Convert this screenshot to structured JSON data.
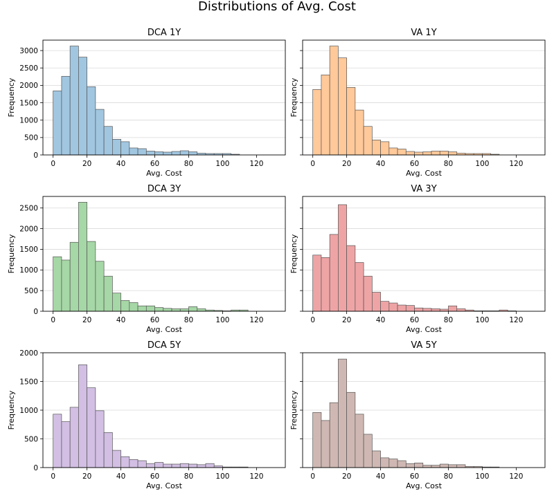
{
  "suptitle": "Distributions of Avg. Cost",
  "chart_data": [
    {
      "type": "bar",
      "title": "DCA 1Y",
      "xlabel": "Avg. Cost",
      "ylabel": "Frequency",
      "color": "#1f77b4",
      "xlim": [
        -6,
        137
      ],
      "ylim": [
        0,
        3300
      ],
      "xticks": [
        0,
        20,
        40,
        60,
        80,
        100,
        120
      ],
      "yticks": [
        0,
        500,
        1000,
        1500,
        2000,
        2500,
        3000
      ],
      "grid": "y",
      "bin_width": 5,
      "bin_start": 0,
      "values": [
        1840,
        2260,
        3130,
        2810,
        1960,
        1310,
        820,
        450,
        380,
        200,
        180,
        110,
        90,
        80,
        100,
        120,
        90,
        50,
        40,
        40,
        40,
        20,
        0,
        0,
        0,
        0
      ]
    },
    {
      "type": "bar",
      "title": "VA 1Y",
      "xlabel": "Avg. Cost",
      "ylabel": "Frequency",
      "color": "#ff7f0e",
      "xlim": [
        -6,
        137
      ],
      "ylim": [
        0,
        3300
      ],
      "xticks": [
        0,
        20,
        40,
        60,
        80,
        100,
        120
      ],
      "yticks": [
        0,
        500,
        1000,
        1500,
        2000,
        2500,
        3000
      ],
      "grid": "y",
      "bin_width": 5,
      "bin_start": 0,
      "values": [
        1880,
        2300,
        3130,
        2790,
        1940,
        1290,
        820,
        430,
        380,
        200,
        170,
        100,
        80,
        90,
        110,
        110,
        90,
        50,
        40,
        40,
        40,
        20,
        0,
        0,
        0,
        0
      ]
    },
    {
      "type": "bar",
      "title": "DCA 3Y",
      "xlabel": "Avg. Cost",
      "ylabel": "Frequency",
      "color": "#2ca02c",
      "xlim": [
        -6,
        137
      ],
      "ylim": [
        0,
        2780
      ],
      "xticks": [
        0,
        20,
        40,
        60,
        80,
        100,
        120
      ],
      "yticks": [
        0,
        500,
        1000,
        1500,
        2000,
        2500
      ],
      "grid": "y",
      "bin_width": 5,
      "bin_start": 0,
      "values": [
        1320,
        1240,
        1670,
        2640,
        1690,
        1210,
        850,
        440,
        260,
        210,
        130,
        130,
        90,
        70,
        60,
        60,
        110,
        60,
        30,
        20,
        10,
        30,
        30,
        0,
        0,
        0
      ]
    },
    {
      "type": "bar",
      "title": "VA 3Y",
      "xlabel": "Avg. Cost",
      "ylabel": "Frequency",
      "color": "#d62728",
      "xlim": [
        -6,
        137
      ],
      "ylim": [
        0,
        2780
      ],
      "xticks": [
        0,
        20,
        40,
        60,
        80,
        100,
        120
      ],
      "yticks": [
        0,
        500,
        1000,
        1500,
        2000,
        2500
      ],
      "grid": "y",
      "bin_width": 5,
      "bin_start": 0,
      "values": [
        1360,
        1300,
        1860,
        2580,
        1590,
        1180,
        850,
        460,
        240,
        200,
        150,
        140,
        80,
        70,
        60,
        50,
        130,
        60,
        30,
        10,
        10,
        10,
        30,
        10,
        0,
        0
      ]
    },
    {
      "type": "bar",
      "title": "DCA 5Y",
      "xlabel": "Avg. Cost",
      "ylabel": "Frequency",
      "color": "#9467bd",
      "xlim": [
        -6,
        137
      ],
      "ylim": [
        0,
        2000
      ],
      "xticks": [
        0,
        20,
        40,
        60,
        80,
        100,
        120
      ],
      "yticks": [
        0,
        500,
        1000,
        1500,
        2000
      ],
      "grid": "y",
      "bin_width": 5,
      "bin_start": 0,
      "values": [
        930,
        800,
        1050,
        1790,
        1390,
        990,
        610,
        300,
        190,
        140,
        120,
        70,
        90,
        60,
        60,
        70,
        60,
        50,
        70,
        30,
        10,
        10,
        10,
        0,
        0,
        0
      ]
    },
    {
      "type": "bar",
      "title": "VA 5Y",
      "xlabel": "Avg. Cost",
      "ylabel": "Frequency",
      "color": "#8c564b",
      "xlim": [
        -6,
        137
      ],
      "ylim": [
        0,
        2000
      ],
      "xticks": [
        0,
        20,
        40,
        60,
        80,
        100,
        120
      ],
      "yticks": [
        0,
        500,
        1000,
        1500,
        2000
      ],
      "grid": "y",
      "bin_width": 5,
      "bin_start": 0,
      "values": [
        960,
        820,
        1130,
        1890,
        1310,
        930,
        580,
        290,
        170,
        150,
        120,
        70,
        80,
        40,
        40,
        60,
        50,
        50,
        20,
        20,
        10,
        10,
        0,
        0,
        0,
        0
      ]
    }
  ]
}
